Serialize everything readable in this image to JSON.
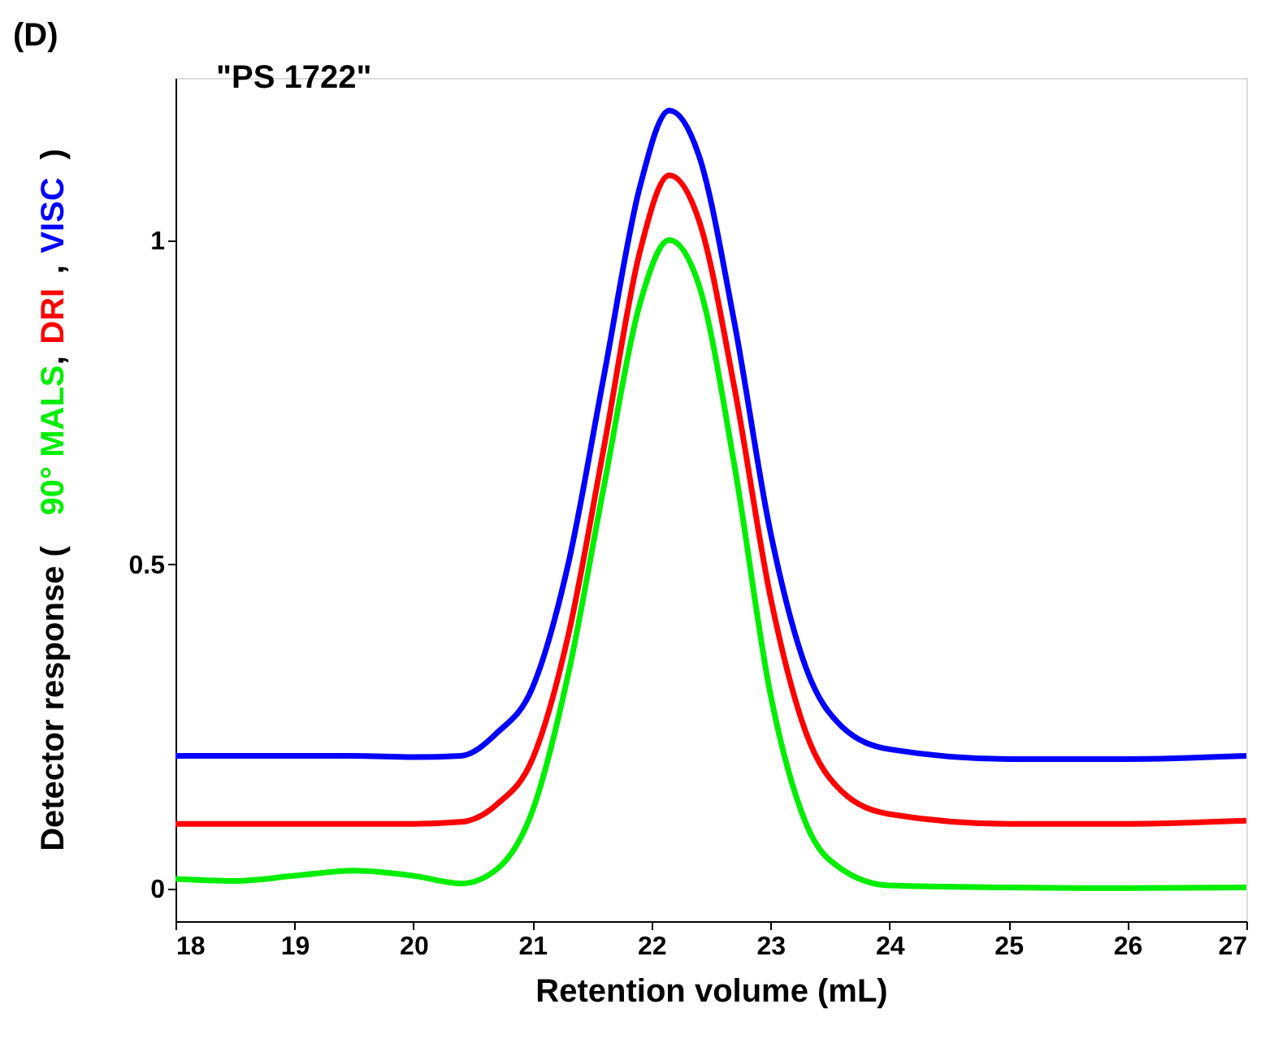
{
  "chart_data": {
    "type": "line",
    "xlabel": "Retention volume (mL)",
    "ylabel": "Detector response (",
    "x": [
      18,
      18.5,
      19,
      19.5,
      20,
      20.4,
      20.7,
      21,
      21.3,
      21.6,
      21.9,
      22.15,
      22.4,
      22.7,
      23,
      23.3,
      23.6,
      24,
      25,
      26,
      27
    ],
    "series": [
      {
        "name": "90° MALS",
        "color": "#00ee00",
        "values": [
          0.015,
          0.012,
          0.02,
          0.028,
          0.02,
          0.008,
          0.03,
          0.12,
          0.33,
          0.62,
          0.9,
          1.0,
          0.93,
          0.65,
          0.3,
          0.1,
          0.03,
          0.005,
          0.002,
          0.001,
          0.002
        ]
      },
      {
        "name": "DRI",
        "color": "#ff0000",
        "values": [
          0.1,
          0.1,
          0.1,
          0.1,
          0.1,
          0.103,
          0.13,
          0.2,
          0.39,
          0.68,
          0.98,
          1.1,
          1.03,
          0.77,
          0.45,
          0.24,
          0.15,
          0.115,
          0.1,
          0.1,
          0.105
        ]
      },
      {
        "name": "VISC",
        "color": "#0000ff",
        "values": [
          0.205,
          0.205,
          0.205,
          0.205,
          0.203,
          0.205,
          0.24,
          0.31,
          0.5,
          0.79,
          1.08,
          1.2,
          1.13,
          0.87,
          0.55,
          0.34,
          0.25,
          0.215,
          0.2,
          0.2,
          0.205
        ]
      }
    ],
    "xlim": [
      18,
      27
    ],
    "xticks": [
      18,
      19,
      20,
      21,
      22,
      23,
      24,
      25,
      26,
      27
    ],
    "ylim": [
      -0.05,
      1.25
    ],
    "yticks": [
      0,
      0.5,
      1
    ],
    "grid": false,
    "legend": false,
    "marker": "none",
    "line_style": "solid",
    "annotations": [
      "(D)",
      "\"PS 1722\"",
      ",",
      ",",
      ")"
    ]
  }
}
